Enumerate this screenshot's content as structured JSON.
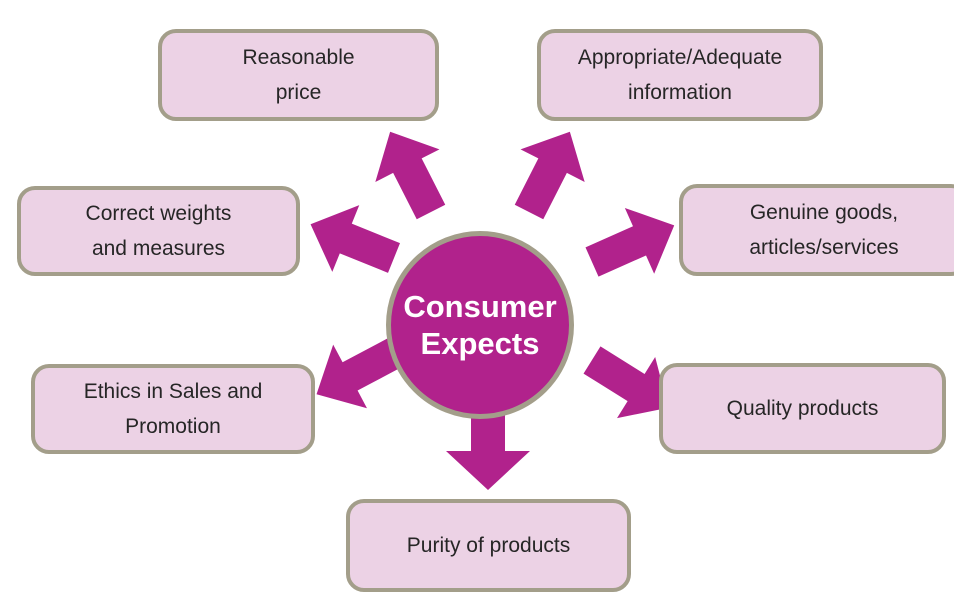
{
  "center": {
    "line1": "Consumer",
    "line2": "Expects"
  },
  "boxes": {
    "reasonable_price": [
      "Reasonable",
      "price"
    ],
    "appropriate_information": [
      "Appropriate/Adequate",
      "information"
    ],
    "correct_weights": [
      "Correct weights",
      "and measures"
    ],
    "genuine_goods": [
      "Genuine goods,",
      "articles/services"
    ],
    "ethics_sales": [
      "Ethics in Sales and",
      "Promotion"
    ],
    "quality_products": [
      "Quality products"
    ],
    "purity_products": [
      "Purity of products"
    ]
  },
  "colors": {
    "hub_fill": "#b1228c",
    "hub_text": "#ffffff",
    "arrow_fill": "#b1228c",
    "box_fill": "#ecd2e5",
    "box_border": "#a39e8a",
    "box_text": "#262626"
  }
}
